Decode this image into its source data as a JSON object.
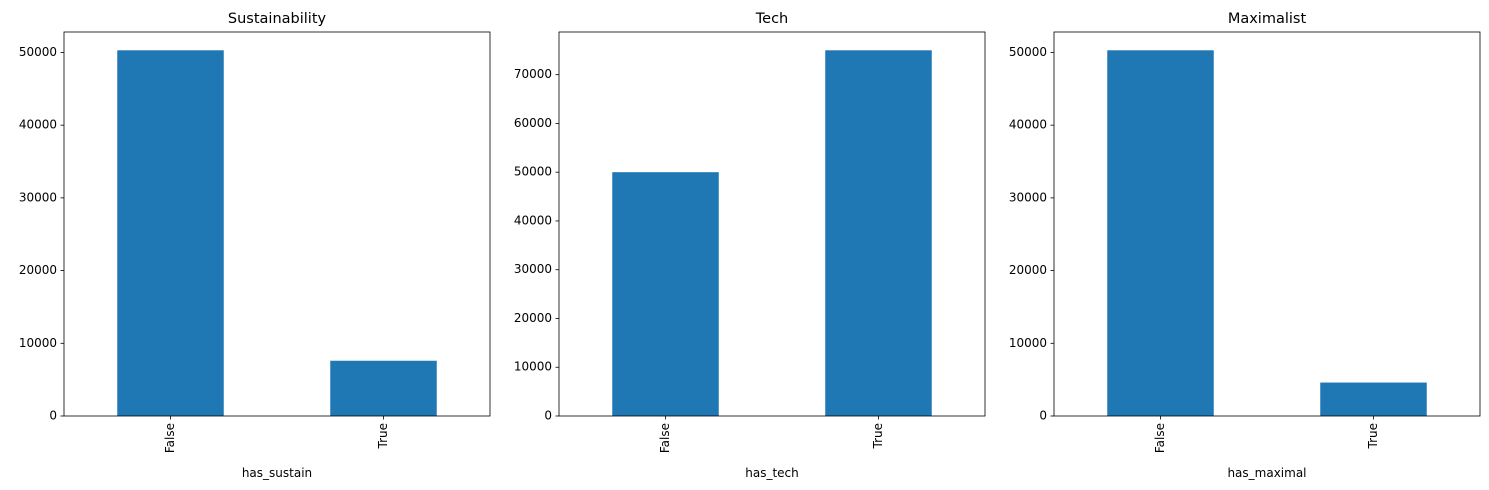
{
  "chart_data": [
    {
      "type": "bar",
      "title": "Sustainability",
      "xlabel": "has_sustain",
      "ylabel": "",
      "categories": [
        "False",
        "True"
      ],
      "values": [
        50300,
        7600
      ],
      "ylim": [
        0,
        52815
      ],
      "yticks": [
        0,
        10000,
        20000,
        30000,
        40000,
        50000
      ],
      "bar_color": "#1f77b4",
      "grid": false
    },
    {
      "type": "bar",
      "title": "Tech",
      "xlabel": "has_tech",
      "ylabel": "",
      "categories": [
        "False",
        "True"
      ],
      "values": [
        50000,
        75000
      ],
      "ylim": [
        0,
        78750
      ],
      "yticks": [
        0,
        10000,
        20000,
        30000,
        40000,
        50000,
        60000,
        70000
      ],
      "bar_color": "#1f77b4",
      "grid": false
    },
    {
      "type": "bar",
      "title": "Maximalist",
      "xlabel": "has_maximal",
      "ylabel": "",
      "categories": [
        "False",
        "True"
      ],
      "values": [
        50300,
        4600
      ],
      "ylim": [
        0,
        52815
      ],
      "yticks": [
        0,
        10000,
        20000,
        30000,
        40000,
        50000
      ],
      "bar_color": "#1f77b4",
      "grid": false
    }
  ]
}
